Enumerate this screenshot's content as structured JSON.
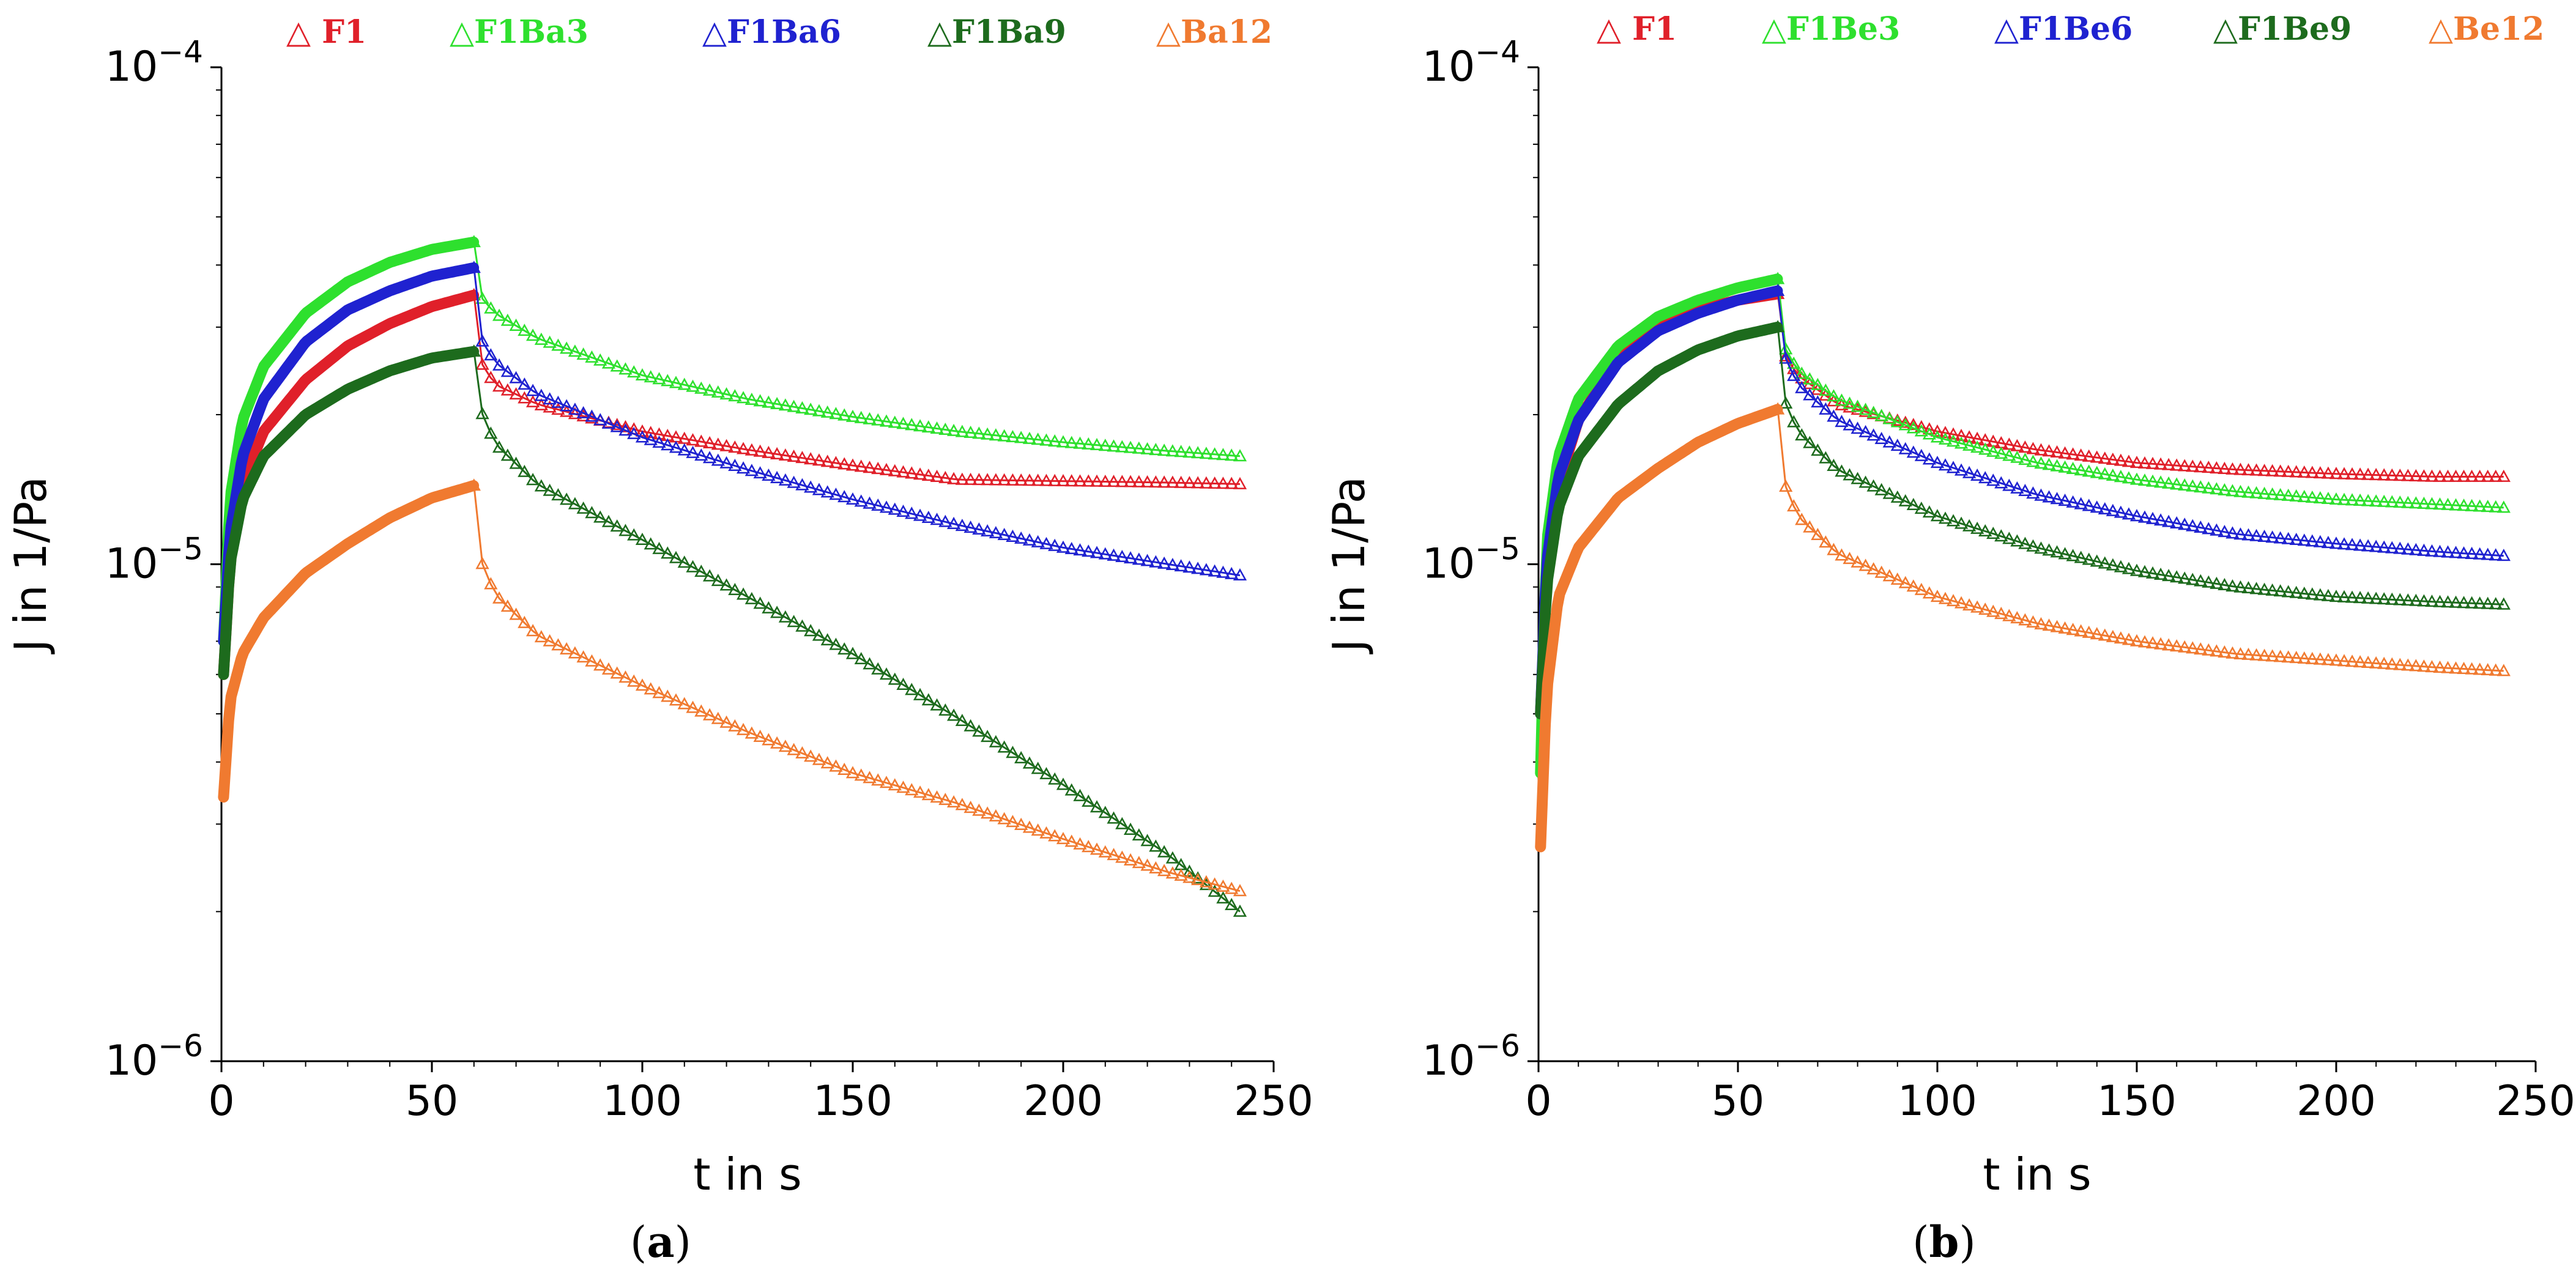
{
  "chart_data": [
    {
      "type": "scatter",
      "panel": "a",
      "panel_label": "(a)",
      "panel_letter": "a",
      "xlabel": "t in s",
      "ylabel": "J in 1/Pa",
      "xlim": [
        0,
        250
      ],
      "ylim": [
        1e-06,
        0.0001
      ],
      "yscale": "log",
      "xticks": [
        0,
        50,
        100,
        150,
        200,
        250
      ],
      "yticks": [
        {
          "value": 0.0001,
          "base": "10",
          "exp": "−4"
        },
        {
          "value": 1e-05,
          "base": "10",
          "exp": "−5"
        },
        {
          "value": 1e-06,
          "base": "10",
          "exp": "−6"
        }
      ],
      "legend_position": "top",
      "marker": "triangle",
      "series": [
        {
          "name": "F1",
          "legend": "△ F1",
          "color": "#e0202a",
          "creep": [
            [
              0.5,
              6e-06
            ],
            [
              2,
              1e-05
            ],
            [
              5,
              1.45e-05
            ],
            [
              10,
              1.85e-05
            ],
            [
              20,
              2.35e-05
            ],
            [
              30,
              2.75e-05
            ],
            [
              40,
              3.05e-05
            ],
            [
              50,
              3.3e-05
            ],
            [
              60,
              3.48e-05
            ]
          ],
          "recovery": [
            [
              60,
              3.48e-05
            ],
            [
              61,
              2.6e-05
            ],
            [
              65,
              2.3e-05
            ],
            [
              75,
              2.1e-05
            ],
            [
              100,
              1.85e-05
            ],
            [
              125,
              1.7e-05
            ],
            [
              150,
              1.58e-05
            ],
            [
              175,
              1.48e-05
            ],
            [
              200,
              1.47e-05
            ],
            [
              225,
              1.46e-05
            ],
            [
              242,
              1.45e-05
            ]
          ]
        },
        {
          "name": "F1Ba3",
          "legend": "△F1Ba3",
          "color": "#2ee02e",
          "creep": [
            [
              0.5,
              7e-06
            ],
            [
              2,
              1.35e-05
            ],
            [
              5,
              1.95e-05
            ],
            [
              10,
              2.5e-05
            ],
            [
              20,
              3.2e-05
            ],
            [
              30,
              3.7e-05
            ],
            [
              40,
              4.05e-05
            ],
            [
              50,
              4.3e-05
            ],
            [
              60,
              4.45e-05
            ]
          ],
          "recovery": [
            [
              60,
              4.45e-05
            ],
            [
              61,
              3.5e-05
            ],
            [
              65,
              3.2e-05
            ],
            [
              75,
              2.85e-05
            ],
            [
              100,
              2.4e-05
            ],
            [
              125,
              2.15e-05
            ],
            [
              150,
              1.98e-05
            ],
            [
              175,
              1.85e-05
            ],
            [
              200,
              1.76e-05
            ],
            [
              225,
              1.69e-05
            ],
            [
              242,
              1.65e-05
            ]
          ]
        },
        {
          "name": "F1Ba6",
          "legend": "△F1Ba6",
          "color": "#1f22d0",
          "creep": [
            [
              0.5,
              7e-06
            ],
            [
              2,
              1.15e-05
            ],
            [
              5,
              1.65e-05
            ],
            [
              10,
              2.15e-05
            ],
            [
              20,
              2.8e-05
            ],
            [
              30,
              3.25e-05
            ],
            [
              40,
              3.55e-05
            ],
            [
              50,
              3.8e-05
            ],
            [
              60,
              3.95e-05
            ]
          ],
          "recovery": [
            [
              60,
              3.95e-05
            ],
            [
              61,
              2.9e-05
            ],
            [
              65,
              2.55e-05
            ],
            [
              75,
              2.2e-05
            ],
            [
              100,
              1.8e-05
            ],
            [
              125,
              1.55e-05
            ],
            [
              150,
              1.35e-05
            ],
            [
              175,
              1.2e-05
            ],
            [
              200,
              1.08e-05
            ],
            [
              225,
              1e-05
            ],
            [
              242,
              9.5e-06
            ]
          ]
        },
        {
          "name": "F1Ba9",
          "legend": "△F1Ba9",
          "color": "#1d6b1d",
          "creep": [
            [
              0.5,
              6e-06
            ],
            [
              2,
              1e-05
            ],
            [
              5,
              1.35e-05
            ],
            [
              10,
              1.65e-05
            ],
            [
              20,
              2e-05
            ],
            [
              30,
              2.25e-05
            ],
            [
              40,
              2.45e-05
            ],
            [
              50,
              2.6e-05
            ],
            [
              60,
              2.68e-05
            ]
          ],
          "recovery": [
            [
              60,
              2.68e-05
            ],
            [
              61,
              2.1e-05
            ],
            [
              65,
              1.75e-05
            ],
            [
              75,
              1.45e-05
            ],
            [
              100,
              1.12e-05
            ],
            [
              125,
              8.6e-06
            ],
            [
              150,
              6.6e-06
            ],
            [
              175,
              4.9e-06
            ],
            [
              200,
              3.6e-06
            ],
            [
              225,
              2.6e-06
            ],
            [
              242,
              2e-06
            ]
          ]
        },
        {
          "name": "Ba12",
          "legend": "△Ba12",
          "color": "#f07a30",
          "creep": [
            [
              0.5,
              3.4e-06
            ],
            [
              2,
              5.3e-06
            ],
            [
              5,
              6.6e-06
            ],
            [
              10,
              7.8e-06
            ],
            [
              20,
              9.6e-06
            ],
            [
              30,
              1.1e-05
            ],
            [
              40,
              1.24e-05
            ],
            [
              50,
              1.36e-05
            ],
            [
              60,
              1.44e-05
            ]
          ],
          "recovery": [
            [
              60,
              1.44e-05
            ],
            [
              61,
              1.05e-05
            ],
            [
              65,
              8.7e-06
            ],
            [
              75,
              7.2e-06
            ],
            [
              100,
              5.7e-06
            ],
            [
              125,
              4.6e-06
            ],
            [
              150,
              3.8e-06
            ],
            [
              175,
              3.3e-06
            ],
            [
              200,
              2.8e-06
            ],
            [
              225,
              2.4e-06
            ],
            [
              242,
              2.2e-06
            ]
          ]
        }
      ]
    },
    {
      "type": "scatter",
      "panel": "b",
      "panel_label": "(b)",
      "panel_letter": "b",
      "xlabel": "t in s",
      "ylabel": "J in 1/Pa",
      "xlim": [
        0,
        250
      ],
      "ylim": [
        1e-06,
        0.0001
      ],
      "yscale": "log",
      "xticks": [
        0,
        50,
        100,
        150,
        200,
        250
      ],
      "yticks": [
        {
          "value": 0.0001,
          "base": "10",
          "exp": "−4"
        },
        {
          "value": 1e-05,
          "base": "10",
          "exp": "−5"
        },
        {
          "value": 1e-06,
          "base": "10",
          "exp": "−6"
        }
      ],
      "legend_position": "top",
      "marker": "triangle",
      "series": [
        {
          "name": "F1",
          "legend": "△ F1",
          "color": "#e0202a",
          "creep": [
            [
              0.5,
              5e-06
            ],
            [
              2,
              9.5e-06
            ],
            [
              5,
              1.45e-05
            ],
            [
              10,
              1.95e-05
            ],
            [
              20,
              2.6e-05
            ],
            [
              30,
              3e-05
            ],
            [
              40,
              3.25e-05
            ],
            [
              50,
              3.4e-05
            ],
            [
              60,
              3.5e-05
            ]
          ],
          "recovery": [
            [
              60,
              3.5e-05
            ],
            [
              61,
              2.7e-05
            ],
            [
              65,
              2.4e-05
            ],
            [
              75,
              2.1e-05
            ],
            [
              100,
              1.85e-05
            ],
            [
              125,
              1.7e-05
            ],
            [
              150,
              1.6e-05
            ],
            [
              175,
              1.55e-05
            ],
            [
              200,
              1.52e-05
            ],
            [
              225,
              1.5e-05
            ],
            [
              242,
              1.5e-05
            ]
          ]
        },
        {
          "name": "F1Be3",
          "legend": "△F1Be3",
          "color": "#2ee02e",
          "creep": [
            [
              0.5,
              3.8e-06
            ],
            [
              2,
              1.1e-05
            ],
            [
              5,
              1.65e-05
            ],
            [
              10,
              2.15e-05
            ],
            [
              20,
              2.75e-05
            ],
            [
              30,
              3.15e-05
            ],
            [
              40,
              3.4e-05
            ],
            [
              50,
              3.6e-05
            ],
            [
              60,
              3.75e-05
            ]
          ],
          "recovery": [
            [
              60,
              3.75e-05
            ],
            [
              61,
              2.8e-05
            ],
            [
              65,
              2.45e-05
            ],
            [
              75,
              2.15e-05
            ],
            [
              100,
              1.8e-05
            ],
            [
              125,
              1.6e-05
            ],
            [
              150,
              1.48e-05
            ],
            [
              175,
              1.4e-05
            ],
            [
              200,
              1.35e-05
            ],
            [
              225,
              1.32e-05
            ],
            [
              242,
              1.3e-05
            ]
          ]
        },
        {
          "name": "F1Be6",
          "legend": "△F1Be6",
          "color": "#1f22d0",
          "creep": [
            [
              0.5,
              5e-06
            ],
            [
              2,
              1e-05
            ],
            [
              5,
              1.5e-05
            ],
            [
              10,
              1.95e-05
            ],
            [
              20,
              2.55e-05
            ],
            [
              30,
              2.95e-05
            ],
            [
              40,
              3.2e-05
            ],
            [
              50,
              3.4e-05
            ],
            [
              60,
              3.55e-05
            ]
          ],
          "recovery": [
            [
              60,
              3.55e-05
            ],
            [
              61,
              2.7e-05
            ],
            [
              65,
              2.3e-05
            ],
            [
              75,
              1.95e-05
            ],
            [
              100,
              1.6e-05
            ],
            [
              125,
              1.38e-05
            ],
            [
              150,
              1.25e-05
            ],
            [
              175,
              1.15e-05
            ],
            [
              200,
              1.1e-05
            ],
            [
              225,
              1.06e-05
            ],
            [
              242,
              1.04e-05
            ]
          ]
        },
        {
          "name": "F1Be9",
          "legend": "△F1Be9",
          "color": "#1d6b1d",
          "creep": [
            [
              0.5,
              5e-06
            ],
            [
              2,
              9e-06
            ],
            [
              5,
              1.3e-05
            ],
            [
              10,
              1.65e-05
            ],
            [
              20,
              2.1e-05
            ],
            [
              30,
              2.45e-05
            ],
            [
              40,
              2.7e-05
            ],
            [
              50,
              2.88e-05
            ],
            [
              60,
              3e-05
            ]
          ],
          "recovery": [
            [
              60,
              3e-05
            ],
            [
              61,
              2.2e-05
            ],
            [
              65,
              1.85e-05
            ],
            [
              75,
              1.55e-05
            ],
            [
              100,
              1.25e-05
            ],
            [
              125,
              1.08e-05
            ],
            [
              150,
              9.7e-06
            ],
            [
              175,
              9e-06
            ],
            [
              200,
              8.6e-06
            ],
            [
              225,
              8.4e-06
            ],
            [
              242,
              8.3e-06
            ]
          ]
        },
        {
          "name": "Be12",
          "legend": "△Be12",
          "color": "#f07a30",
          "creep": [
            [
              0.5,
              2.7e-06
            ],
            [
              2,
              5.5e-06
            ],
            [
              5,
              8.6e-06
            ],
            [
              10,
              1.08e-05
            ],
            [
              20,
              1.36e-05
            ],
            [
              30,
              1.56e-05
            ],
            [
              40,
              1.76e-05
            ],
            [
              50,
              1.92e-05
            ],
            [
              60,
              2.05e-05
            ]
          ],
          "recovery": [
            [
              60,
              2.05e-05
            ],
            [
              61,
              1.5e-05
            ],
            [
              65,
              1.25e-05
            ],
            [
              75,
              1.05e-05
            ],
            [
              100,
              8.6e-06
            ],
            [
              125,
              7.6e-06
            ],
            [
              150,
              7e-06
            ],
            [
              175,
              6.6e-06
            ],
            [
              200,
              6.4e-06
            ],
            [
              225,
              6.2e-06
            ],
            [
              242,
              6.1e-06
            ]
          ]
        }
      ]
    }
  ]
}
